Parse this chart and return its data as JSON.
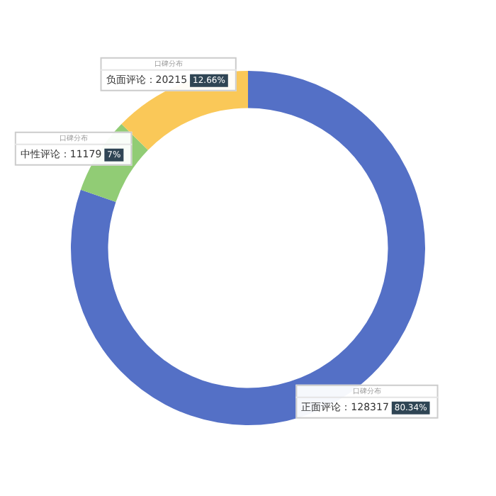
{
  "chart_data": {
    "type": "donut",
    "categories": [
      "正面评论：128317",
      "中性评论：11179",
      "负面评论：20215"
    ],
    "values": [
      80.34,
      7,
      12.66
    ],
    "colors": [
      "#5470c6",
      "#91cc75",
      "#fac858"
    ],
    "value_labels": [
      "80.34%",
      "7%",
      "12.66%"
    ],
    "annotations": [
      "口碑分布"
    ],
    "legend": false
  }
}
